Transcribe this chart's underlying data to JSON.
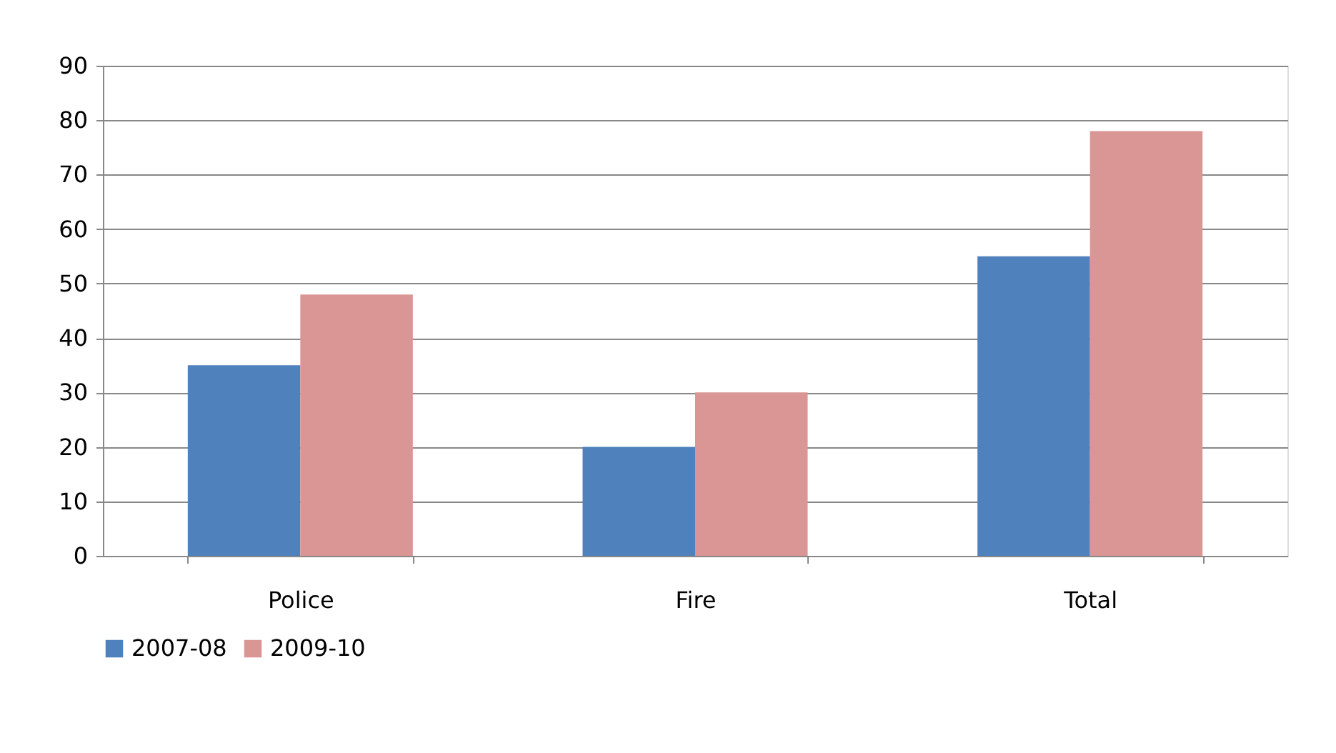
{
  "chart_data": {
    "type": "bar",
    "categories": [
      "Police",
      "Fire",
      "Total"
    ],
    "series": [
      {
        "name": "2007-08",
        "color": "#4f81bd",
        "values": [
          35,
          20,
          55
        ]
      },
      {
        "name": "2009-10",
        "color": "#d99694",
        "values": [
          48,
          30,
          78
        ]
      }
    ],
    "ylim": [
      0,
      90
    ],
    "yticks": [
      0,
      10,
      20,
      30,
      40,
      50,
      60,
      70,
      80,
      90
    ],
    "grid": "y",
    "legend": "bottom"
  }
}
